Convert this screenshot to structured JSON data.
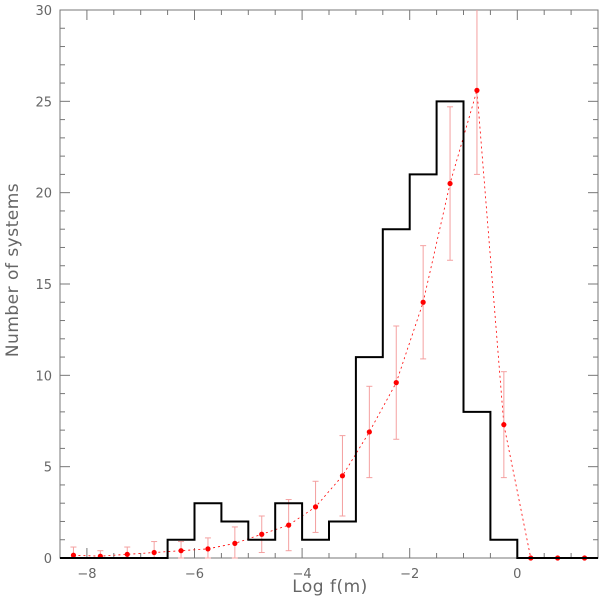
{
  "chart_data": {
    "type": "histogram",
    "xlabel": "Log f(m)",
    "ylabel": "Number of systems",
    "xlim": [
      -8.5,
      1.5
    ],
    "ylim": [
      0,
      30
    ],
    "xticks": [
      -8,
      -6,
      -4,
      -2,
      0
    ],
    "yticks": [
      0,
      5,
      10,
      15,
      20,
      25,
      30
    ],
    "grid": false,
    "colors": {
      "histogram": "#000000",
      "model": "#ff0000",
      "errorbar": "#f4a0a0",
      "axis": "#777777"
    },
    "histogram": {
      "bin_width": 0.5,
      "bins": [
        {
          "x0": -8.5,
          "x1": -8.0,
          "count": 0
        },
        {
          "x0": -8.0,
          "x1": -7.5,
          "count": 0
        },
        {
          "x0": -7.5,
          "x1": -7.0,
          "count": 0
        },
        {
          "x0": -7.0,
          "x1": -6.5,
          "count": 0
        },
        {
          "x0": -6.5,
          "x1": -6.0,
          "count": 1
        },
        {
          "x0": -6.0,
          "x1": -5.5,
          "count": 3
        },
        {
          "x0": -5.5,
          "x1": -5.0,
          "count": 2
        },
        {
          "x0": -5.0,
          "x1": -4.5,
          "count": 1
        },
        {
          "x0": -4.5,
          "x1": -4.0,
          "count": 3
        },
        {
          "x0": -4.0,
          "x1": -3.5,
          "count": 1
        },
        {
          "x0": -3.5,
          "x1": -3.0,
          "count": 2
        },
        {
          "x0": -3.0,
          "x1": -2.5,
          "count": 11
        },
        {
          "x0": -2.5,
          "x1": -2.0,
          "count": 18
        },
        {
          "x0": -2.0,
          "x1": -1.5,
          "count": 21
        },
        {
          "x0": -1.5,
          "x1": -1.0,
          "count": 25
        },
        {
          "x0": -1.0,
          "x1": -0.5,
          "count": 8
        },
        {
          "x0": -0.5,
          "x1": 0.0,
          "count": 1
        },
        {
          "x0": 0.0,
          "x1": 0.5,
          "count": 0
        },
        {
          "x0": 0.5,
          "x1": 1.0,
          "count": 0
        },
        {
          "x0": 1.0,
          "x1": 1.5,
          "count": 0
        }
      ]
    },
    "model_points": [
      {
        "x": -8.25,
        "y": 0.15,
        "err": 0.45
      },
      {
        "x": -7.75,
        "y": 0.1,
        "err": 0.3
      },
      {
        "x": -7.25,
        "y": 0.2,
        "err": 0.4
      },
      {
        "x": -6.75,
        "y": 0.3,
        "err": 0.6
      },
      {
        "x": -6.25,
        "y": 0.4,
        "err": 0.5
      },
      {
        "x": -5.75,
        "y": 0.5,
        "err": 0.6
      },
      {
        "x": -5.25,
        "y": 0.8,
        "err": 0.9
      },
      {
        "x": -4.75,
        "y": 1.3,
        "err": 1.0
      },
      {
        "x": -4.25,
        "y": 1.8,
        "err": 1.4
      },
      {
        "x": -3.75,
        "y": 2.8,
        "err": 1.4
      },
      {
        "x": -3.25,
        "y": 4.5,
        "err": 2.2
      },
      {
        "x": -2.75,
        "y": 6.9,
        "err": 2.5
      },
      {
        "x": -2.25,
        "y": 9.6,
        "err": 3.1
      },
      {
        "x": -1.75,
        "y": 14.0,
        "err": 3.1
      },
      {
        "x": -1.25,
        "y": 20.5,
        "err": 4.2
      },
      {
        "x": -0.75,
        "y": 25.6,
        "err": 4.6
      },
      {
        "x": -0.25,
        "y": 7.3,
        "err": 2.9
      },
      {
        "x": 0.25,
        "y": 0.0,
        "err": 0.0
      },
      {
        "x": 0.75,
        "y": 0.0,
        "err": 0.0
      },
      {
        "x": 1.25,
        "y": 0.0,
        "err": 0.0
      }
    ]
  }
}
